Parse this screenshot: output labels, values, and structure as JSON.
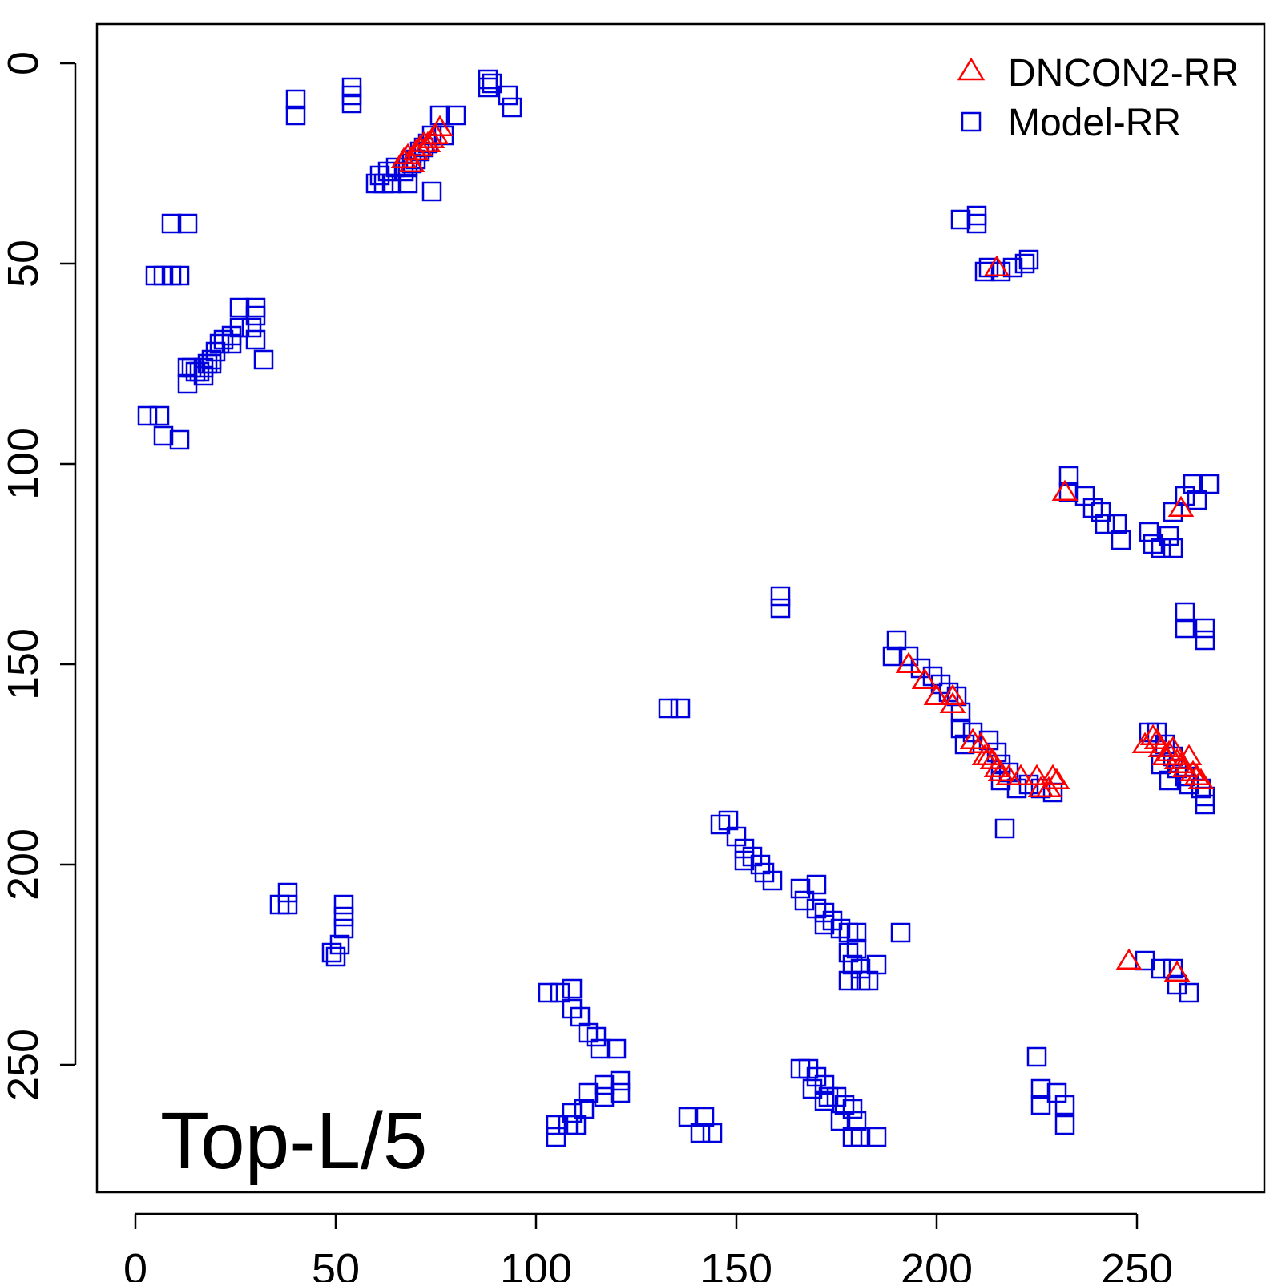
{
  "chart_data": {
    "type": "scatter",
    "title": "",
    "xlabel": "",
    "ylabel": "",
    "annotation": "Top-L/5",
    "xlim": [
      -10,
      282
    ],
    "ylim": [
      -10,
      282
    ],
    "y_reversed": true,
    "x_ticks": [
      0,
      50,
      100,
      150,
      200,
      250
    ],
    "y_ticks": [
      0,
      50,
      100,
      150,
      200,
      250
    ],
    "x_tick_labels": [
      "0",
      "50",
      "100",
      "150",
      "200",
      "250"
    ],
    "y_tick_labels": [
      "0",
      "50",
      "100",
      "150",
      "200",
      "250"
    ],
    "grid": false,
    "legend_position": "top-right",
    "series": [
      {
        "name": "DNCON2-RR",
        "marker": "triangle",
        "color": "#ff0000",
        "points": [
          [
            67,
            24
          ],
          [
            68,
            23
          ],
          [
            69,
            25
          ],
          [
            70,
            22
          ],
          [
            71,
            21
          ],
          [
            72,
            20
          ],
          [
            73,
            20
          ],
          [
            74,
            19
          ],
          [
            75,
            18
          ],
          [
            76,
            16
          ],
          [
            215,
            51
          ],
          [
            232,
            107
          ],
          [
            261,
            111
          ],
          [
            193,
            150
          ],
          [
            197,
            154
          ],
          [
            200,
            158
          ],
          [
            204,
            158
          ],
          [
            204,
            160
          ],
          [
            209,
            169
          ],
          [
            211,
            170
          ],
          [
            212,
            173
          ],
          [
            213,
            173
          ],
          [
            214,
            174
          ],
          [
            215,
            176
          ],
          [
            216,
            177
          ],
          [
            218,
            178
          ],
          [
            221,
            178
          ],
          [
            225,
            178
          ],
          [
            226,
            181
          ],
          [
            228,
            181
          ],
          [
            229,
            178
          ],
          [
            230,
            179
          ],
          [
            252,
            170
          ],
          [
            254,
            168
          ],
          [
            255,
            169
          ],
          [
            256,
            171
          ],
          [
            257,
            173
          ],
          [
            258,
            172
          ],
          [
            259,
            171
          ],
          [
            260,
            174
          ],
          [
            261,
            175
          ],
          [
            262,
            176
          ],
          [
            263,
            173
          ],
          [
            264,
            177
          ],
          [
            265,
            178
          ],
          [
            266,
            179
          ],
          [
            248,
            224
          ],
          [
            260,
            227
          ]
        ]
      },
      {
        "name": "Model-RR",
        "marker": "square",
        "color": "#0000dd",
        "points": [
          [
            40,
            9
          ],
          [
            40,
            13
          ],
          [
            54,
            6
          ],
          [
            54,
            8
          ],
          [
            54,
            10
          ],
          [
            88,
            4
          ],
          [
            89,
            5
          ],
          [
            88,
            6
          ],
          [
            93,
            8
          ],
          [
            94,
            11
          ],
          [
            80,
            13
          ],
          [
            76,
            13
          ],
          [
            77,
            18
          ],
          [
            74,
            18
          ],
          [
            73,
            20
          ],
          [
            72,
            21
          ],
          [
            71,
            22
          ],
          [
            70,
            24
          ],
          [
            69,
            25
          ],
          [
            68,
            26
          ],
          [
            67,
            27
          ],
          [
            65,
            26
          ],
          [
            63,
            27
          ],
          [
            61,
            28
          ],
          [
            60,
            30
          ],
          [
            62,
            30
          ],
          [
            64,
            30
          ],
          [
            68,
            30
          ],
          [
            74,
            32
          ],
          [
            9,
            40
          ],
          [
            13,
            40
          ],
          [
            5,
            53
          ],
          [
            7,
            53
          ],
          [
            9,
            53
          ],
          [
            11,
            53
          ],
          [
            26,
            61
          ],
          [
            30,
            61
          ],
          [
            30,
            63
          ],
          [
            29,
            66
          ],
          [
            30,
            69
          ],
          [
            26,
            66
          ],
          [
            24,
            68
          ],
          [
            22,
            69
          ],
          [
            21,
            70
          ],
          [
            20,
            72
          ],
          [
            19,
            74
          ],
          [
            18,
            75
          ],
          [
            17,
            76
          ],
          [
            16,
            77
          ],
          [
            15,
            77
          ],
          [
            14,
            76
          ],
          [
            13,
            76
          ],
          [
            13,
            80
          ],
          [
            24,
            70
          ],
          [
            32,
            74
          ],
          [
            19,
            75
          ],
          [
            17,
            78
          ],
          [
            3,
            88
          ],
          [
            6,
            88
          ],
          [
            7,
            93
          ],
          [
            11,
            94
          ],
          [
            206,
            39
          ],
          [
            210,
            38
          ],
          [
            210,
            40
          ],
          [
            213,
            51
          ],
          [
            216,
            52
          ],
          [
            219,
            51
          ],
          [
            222,
            50
          ],
          [
            223,
            49
          ],
          [
            212,
            52
          ],
          [
            233,
            103
          ],
          [
            233,
            107
          ],
          [
            237,
            108
          ],
          [
            239,
            111
          ],
          [
            241,
            112
          ],
          [
            242,
            115
          ],
          [
            245,
            115
          ],
          [
            246,
            119
          ],
          [
            253,
            117
          ],
          [
            254,
            120
          ],
          [
            256,
            121
          ],
          [
            258,
            118
          ],
          [
            259,
            121
          ],
          [
            259,
            112
          ],
          [
            262,
            108
          ],
          [
            264,
            105
          ],
          [
            268,
            105
          ],
          [
            265,
            109
          ],
          [
            262,
            137
          ],
          [
            262,
            141
          ],
          [
            267,
            141
          ],
          [
            267,
            144
          ],
          [
            161,
            133
          ],
          [
            161,
            136
          ],
          [
            133,
            161
          ],
          [
            136,
            161
          ],
          [
            190,
            144
          ],
          [
            189,
            148
          ],
          [
            193,
            148
          ],
          [
            196,
            151
          ],
          [
            199,
            153
          ],
          [
            201,
            155
          ],
          [
            203,
            157
          ],
          [
            205,
            158
          ],
          [
            206,
            162
          ],
          [
            206,
            166
          ],
          [
            207,
            170
          ],
          [
            209,
            167
          ],
          [
            213,
            169
          ],
          [
            215,
            172
          ],
          [
            216,
            175
          ],
          [
            218,
            177
          ],
          [
            216,
            179
          ],
          [
            220,
            181
          ],
          [
            223,
            180
          ],
          [
            226,
            181
          ],
          [
            229,
            182
          ],
          [
            217,
            191
          ],
          [
            253,
            167
          ],
          [
            255,
            167
          ],
          [
            257,
            170
          ],
          [
            259,
            173
          ],
          [
            260,
            176
          ],
          [
            262,
            178
          ],
          [
            263,
            180
          ],
          [
            266,
            181
          ],
          [
            267,
            183
          ],
          [
            267,
            185
          ],
          [
            258,
            179
          ],
          [
            256,
            175
          ],
          [
            146,
            190
          ],
          [
            148,
            189
          ],
          [
            150,
            193
          ],
          [
            152,
            196
          ],
          [
            154,
            198
          ],
          [
            156,
            200
          ],
          [
            157,
            202
          ],
          [
            159,
            204
          ],
          [
            152,
            199
          ],
          [
            166,
            206
          ],
          [
            170,
            205
          ],
          [
            172,
            212
          ],
          [
            174,
            214
          ],
          [
            176,
            216
          ],
          [
            178,
            217
          ],
          [
            180,
            217
          ],
          [
            180,
            221
          ],
          [
            178,
            222
          ],
          [
            179,
            225
          ],
          [
            181,
            226
          ],
          [
            178,
            229
          ],
          [
            181,
            229
          ],
          [
            185,
            225
          ],
          [
            183,
            229
          ],
          [
            167,
            209
          ],
          [
            170,
            211
          ],
          [
            172,
            215
          ],
          [
            191,
            217
          ],
          [
            38,
            207
          ],
          [
            38,
            210
          ],
          [
            36,
            210
          ],
          [
            52,
            210
          ],
          [
            52,
            213
          ],
          [
            52,
            216
          ],
          [
            51,
            220
          ],
          [
            49,
            222
          ],
          [
            50,
            223
          ],
          [
            225,
            248
          ],
          [
            226,
            256
          ],
          [
            226,
            260
          ],
          [
            230,
            257
          ],
          [
            232,
            260
          ],
          [
            232,
            265
          ],
          [
            252,
            224
          ],
          [
            256,
            226
          ],
          [
            259,
            226
          ],
          [
            260,
            230
          ],
          [
            263,
            232
          ],
          [
            103,
            232
          ],
          [
            106,
            232
          ],
          [
            109,
            231
          ],
          [
            109,
            236
          ],
          [
            111,
            238
          ],
          [
            113,
            242
          ],
          [
            115,
            243
          ],
          [
            116,
            246
          ],
          [
            120,
            246
          ],
          [
            121,
            254
          ],
          [
            117,
            255
          ],
          [
            121,
            257
          ],
          [
            117,
            258
          ],
          [
            113,
            257
          ],
          [
            112,
            261
          ],
          [
            109,
            262
          ],
          [
            108,
            265
          ],
          [
            105,
            265
          ],
          [
            105,
            268
          ],
          [
            110,
            265
          ],
          [
            138,
            263
          ],
          [
            142,
            263
          ],
          [
            141,
            267
          ],
          [
            144,
            267
          ],
          [
            166,
            251
          ],
          [
            168,
            251
          ],
          [
            170,
            253
          ],
          [
            172,
            255
          ],
          [
            173,
            258
          ],
          [
            175,
            258
          ],
          [
            177,
            260
          ],
          [
            179,
            261
          ],
          [
            180,
            264
          ],
          [
            181,
            268
          ],
          [
            185,
            268
          ],
          [
            179,
            268
          ],
          [
            176,
            264
          ],
          [
            172,
            259
          ],
          [
            169,
            256
          ]
        ]
      }
    ]
  }
}
